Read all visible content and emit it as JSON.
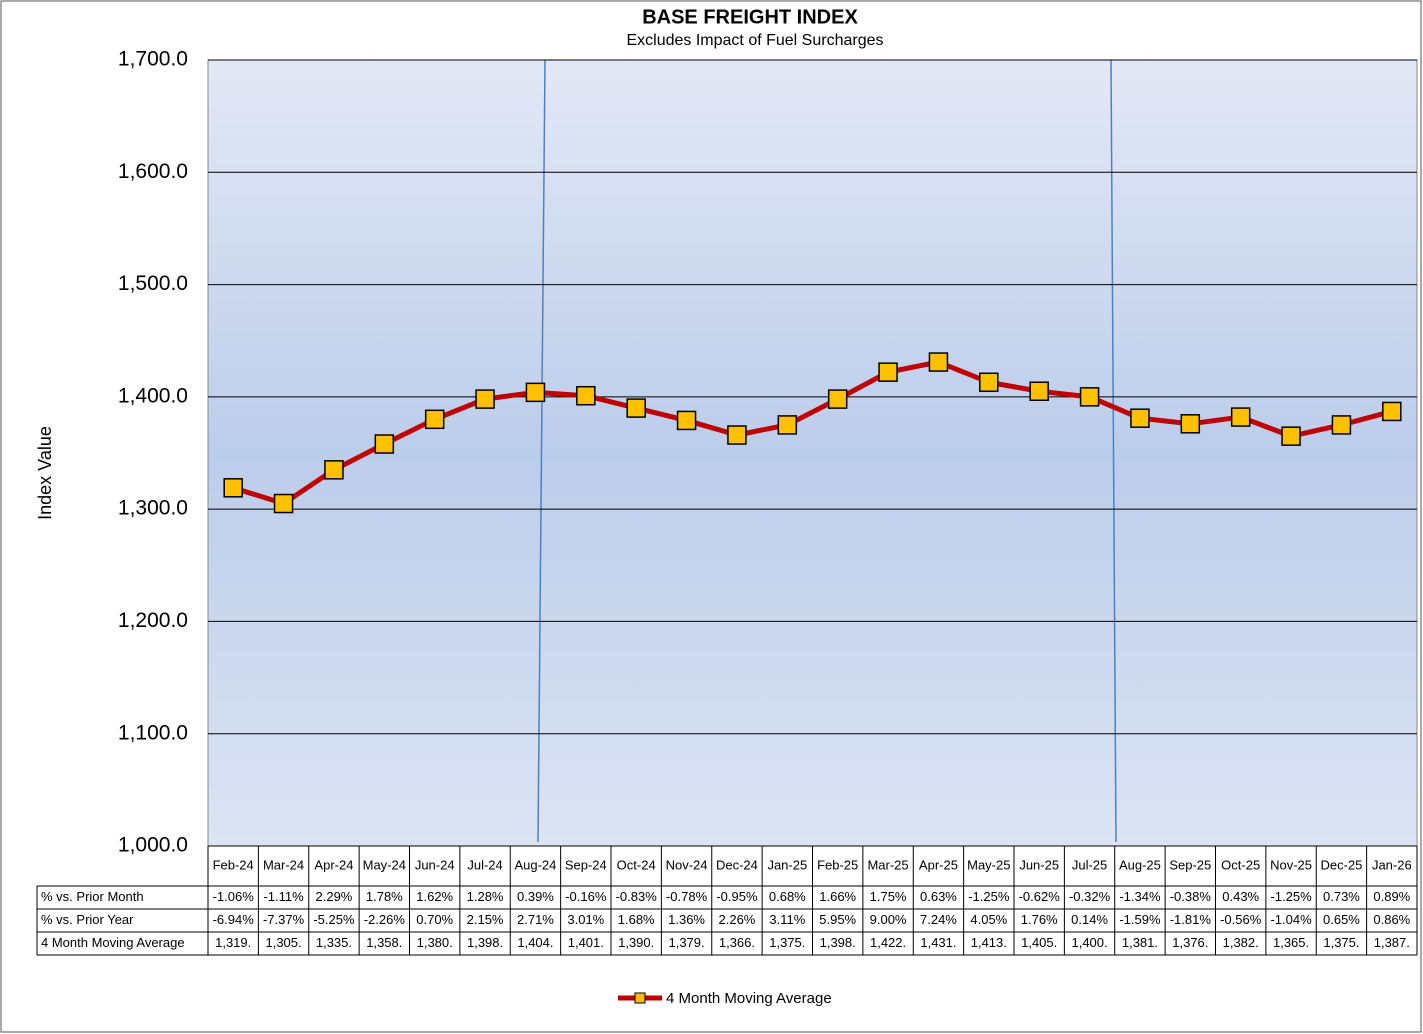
{
  "chart_data": {
    "type": "line",
    "title": "BASE FREIGHT INDEX",
    "subtitle": "Excludes Impact of Fuel Surcharges",
    "y_label": "Index Value",
    "categories": [
      "Feb-24",
      "Mar-24",
      "Apr-24",
      "May-24",
      "Jun-24",
      "Jul-24",
      "Aug-24",
      "Sep-24",
      "Oct-24",
      "Nov-24",
      "Dec-24",
      "Jan-25",
      "Feb-25",
      "Mar-25",
      "Apr-25",
      "May-25",
      "Jun-25",
      "Jul-25",
      "Aug-25",
      "Sep-25",
      "Oct-25",
      "Nov-25",
      "Dec-25",
      "Jan-26"
    ],
    "series": [
      {
        "name": "4 Month Moving Average",
        "color": "#c00000",
        "marker_color": "#ffc000",
        "values": [
          1319,
          1305,
          1335,
          1358,
          1380,
          1398,
          1404,
          1401,
          1390,
          1379,
          1366,
          1375,
          1398,
          1422,
          1431,
          1413,
          1405,
          1400,
          1381,
          1376,
          1382,
          1365,
          1375,
          1387
        ],
        "value_labels": [
          "1,319.",
          "1,305.",
          "1,335.",
          "1,358.",
          "1,380.",
          "1,398.",
          "1,404.",
          "1,401.",
          "1,390.",
          "1,379.",
          "1,366.",
          "1,375.",
          "1,398.",
          "1,422.",
          "1,431.",
          "1,413.",
          "1,405.",
          "1,400.",
          "1,381.",
          "1,376.",
          "1,382.",
          "1,365.",
          "1,375.",
          "1,387."
        ]
      }
    ],
    "table_rows": [
      {
        "name": "% vs. Prior Month",
        "cells": [
          "-1.06%",
          "-1.11%",
          "2.29%",
          "1.78%",
          "1.62%",
          "1.28%",
          "0.39%",
          "-0.16%",
          "-0.83%",
          "-0.78%",
          "-0.95%",
          "0.68%",
          "1.66%",
          "1.75%",
          "0.63%",
          "-1.25%",
          "-0.62%",
          "-0.32%",
          "-1.34%",
          "-0.38%",
          "0.43%",
          "-1.25%",
          "0.73%",
          "0.89%"
        ]
      },
      {
        "name": "% vs. Prior Year",
        "cells": [
          "-6.94%",
          "-7.37%",
          "-5.25%",
          "-2.26%",
          "0.70%",
          "2.15%",
          "2.71%",
          "3.01%",
          "1.68%",
          "1.36%",
          "2.26%",
          "3.11%",
          "5.95%",
          "9.00%",
          "7.24%",
          "4.05%",
          "1.76%",
          "0.14%",
          "-1.59%",
          "-1.81%",
          "-0.56%",
          "-1.04%",
          "0.65%",
          "0.86%"
        ]
      }
    ],
    "ylim": [
      1000,
      1700
    ],
    "yticks": [
      {
        "value": 1000,
        "label": "1,000.0"
      },
      {
        "value": 1100,
        "label": "1,100.0"
      },
      {
        "value": 1200,
        "label": "1,200.0"
      },
      {
        "value": 1300,
        "label": "1,300.0"
      },
      {
        "value": 1400,
        "label": "1,400.0"
      },
      {
        "value": 1500,
        "label": "1,500.0"
      },
      {
        "value": 1600,
        "label": "1,600.0"
      },
      {
        "value": 1700,
        "label": "1,700.0"
      }
    ],
    "grid": true,
    "legend": "bottom"
  }
}
